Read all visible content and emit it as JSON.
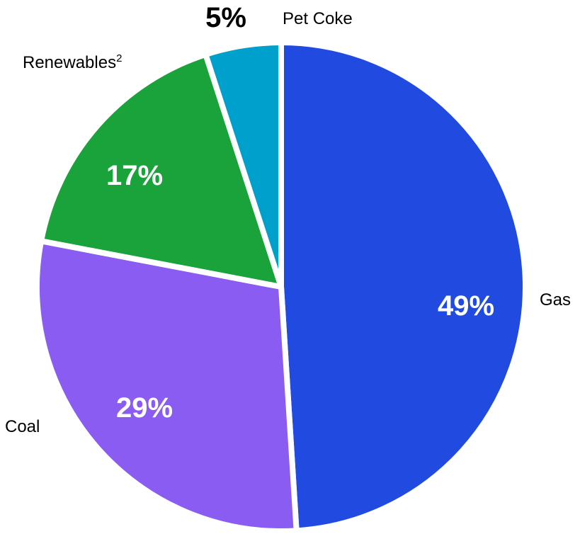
{
  "chart_data": {
    "type": "pie",
    "title": "",
    "slices": [
      {
        "label": "Gas",
        "value": 49,
        "value_label": "49%",
        "color": "#214be0"
      },
      {
        "label": "Coal",
        "value": 29,
        "value_label": "29%",
        "color": "#8b5cf1"
      },
      {
        "label": "Renewables",
        "superscript": "2",
        "value": 17,
        "value_label": "17%",
        "color": "#1aa33a"
      },
      {
        "label": "Pet Coke",
        "value": 5,
        "value_label": "5%",
        "color": "#00a0cc"
      }
    ],
    "legend": "none",
    "start_angle": "12 o'clock",
    "direction": "clockwise"
  }
}
